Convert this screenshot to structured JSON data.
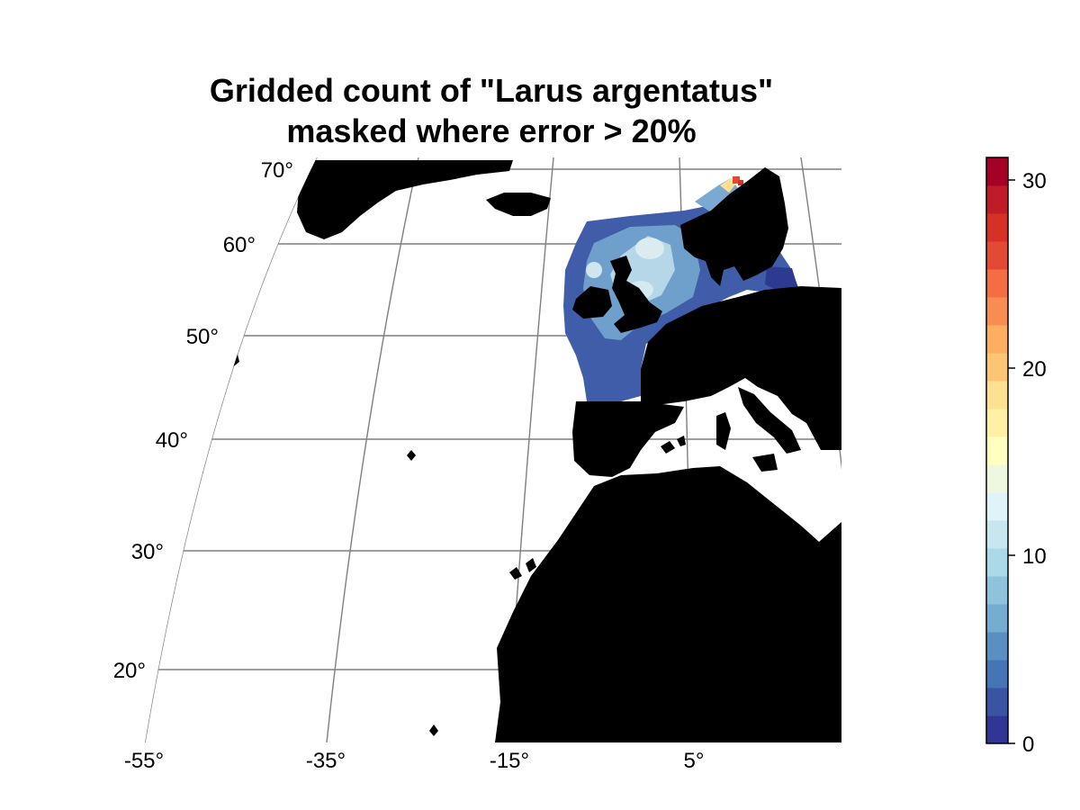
{
  "title": {
    "line1": "Gridded count of \"Larus argentatus\"",
    "line2": "masked where error > 20%"
  },
  "axes": {
    "longitude_ticks": [
      "-55°",
      "-35°",
      "-15°",
      "5°"
    ],
    "latitude_ticks": [
      "70°",
      "60°",
      "50°",
      "40°",
      "30°",
      "20°"
    ]
  },
  "colorbar": {
    "ticks": [
      "0",
      "10",
      "20",
      "30"
    ],
    "range": [
      0,
      31
    ],
    "colors": [
      "#313695",
      "#3a54a4",
      "#4575b4",
      "#5b8fc3",
      "#74add1",
      "#8fc3dd",
      "#abd9e9",
      "#c7e6ef",
      "#e0f3f8",
      "#eef8e0",
      "#ffffbf",
      "#fff0a6",
      "#fee090",
      "#fdc474",
      "#fdae61",
      "#f88d52",
      "#f46d43",
      "#e34a33",
      "#d73027",
      "#c11b27",
      "#a50026"
    ]
  },
  "map": {
    "land_color": "#000000",
    "grid_color": "#7f7f7f",
    "background_color": "#ffffff"
  }
}
